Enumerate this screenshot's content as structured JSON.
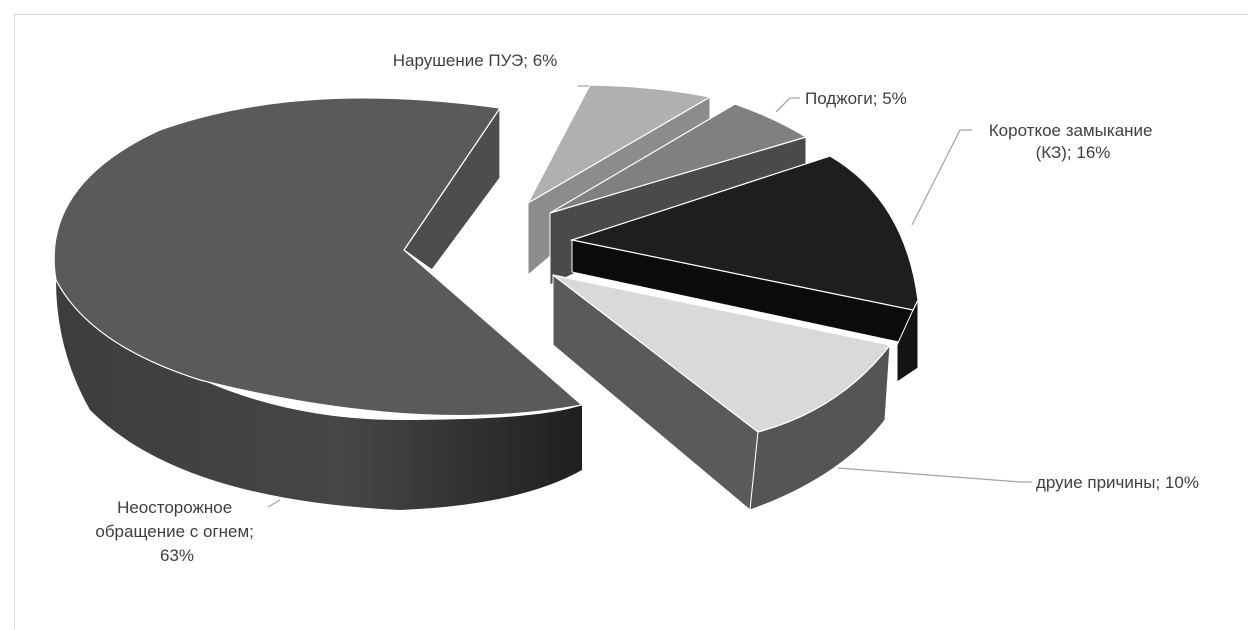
{
  "chart_data": {
    "type": "pie",
    "style": "3d-exploded",
    "slices": [
      {
        "label": "Нарушение ПУЭ",
        "value": 6,
        "color": "#b0b0b0",
        "side": "#8a8a8a",
        "label_lines": [
          "Нарушение ПУЭ; 6%"
        ]
      },
      {
        "label": "Поджоги",
        "value": 5,
        "color": "#808080",
        "side": "#4a4a4a",
        "label_lines": [
          "Поджоги; 5%"
        ]
      },
      {
        "label": "Короткое замыкание (КЗ)",
        "value": 16,
        "color": "#1e1e1e",
        "side": "#0b0b0b",
        "label_lines": [
          "Короткое замыкание",
          "(КЗ); 16%"
        ]
      },
      {
        "label": "друие причины",
        "value": 10,
        "color": "#d9d9d9",
        "side": "#5a5a5a",
        "label_lines": [
          "друие причины; 10%"
        ]
      },
      {
        "label": "Неосторожное обращение с огнем",
        "value": 63,
        "color": "#5a5a5a",
        "side": "#3a3a3a",
        "label_lines": [
          "Неосторожное",
          "обращение с огнем;",
          "63%"
        ]
      }
    ],
    "legend": "none",
    "data_labels": "outside-with-leader-lines"
  }
}
